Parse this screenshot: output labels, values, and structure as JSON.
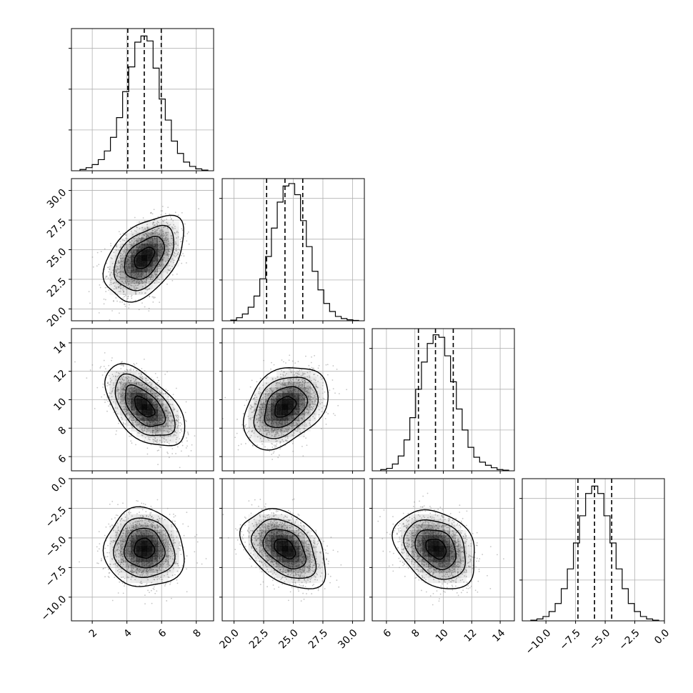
{
  "chart_data": {
    "type": "corner",
    "grid": true,
    "parameters": [
      {
        "index": 0,
        "range": [
          0.8,
          9.0
        ],
        "ticks": [
          2,
          4,
          6,
          8
        ],
        "tick_labels": [
          "2",
          "4",
          "6",
          "8"
        ],
        "quantiles": [
          4.05,
          5.0,
          5.98
        ],
        "hist_bins": [
          0.1,
          0.25,
          0.5,
          0.9,
          1.6,
          2.7,
          4.3,
          6.4,
          8.4,
          10.4,
          10.9,
          10.5,
          8.3,
          5.8,
          4.1,
          2.4,
          1.4,
          0.7,
          0.35,
          0.15,
          0.05
        ],
        "hist_grid_counts": [
          3.3,
          6.6,
          9.9
        ],
        "hist_ylim": [
          0,
          11.5
        ]
      },
      {
        "index": 1,
        "range": [
          19.0,
          31.0
        ],
        "ticks": [
          20.0,
          22.5,
          25.0,
          27.5,
          30.0
        ],
        "tick_labels": [
          "20.0",
          "22.5",
          "25.0",
          "27.5",
          "30.0"
        ],
        "quantiles": [
          22.75,
          24.3,
          25.8
        ],
        "hist_bins": [
          0.05,
          0.25,
          0.55,
          1.1,
          2.0,
          3.4,
          5.2,
          7.5,
          9.6,
          10.9,
          11.1,
          10.2,
          8.1,
          6.0,
          4.0,
          2.5,
          1.4,
          0.75,
          0.35,
          0.18,
          0.08,
          0.03
        ],
        "hist_grid_counts": [
          3.3,
          6.6,
          9.9
        ],
        "hist_ylim": [
          0,
          11.5
        ]
      },
      {
        "index": 2,
        "range": [
          5.0,
          15.0
        ],
        "ticks": [
          6,
          8,
          10,
          12,
          14
        ],
        "tick_labels": [
          "6",
          "8",
          "10",
          "12",
          "14"
        ],
        "quantiles": [
          8.25,
          9.45,
          10.7
        ],
        "hist_bins": [
          0.1,
          0.2,
          0.55,
          1.2,
          2.5,
          4.3,
          6.6,
          8.8,
          10.3,
          11.0,
          10.8,
          9.3,
          7.2,
          5.0,
          3.3,
          1.9,
          1.1,
          0.7,
          0.45,
          0.25,
          0.1,
          0.05
        ],
        "hist_grid_counts": [
          3.3,
          6.6,
          9.9
        ],
        "hist_ylim": [
          0,
          11.5
        ]
      },
      {
        "index": 3,
        "range": [
          -12.0,
          0.0
        ],
        "ticks": [
          -10.0,
          -7.5,
          -5.0,
          -2.5,
          0.0
        ],
        "tick_labels": [
          "−10.0",
          "−7.5",
          "−5.0",
          "−2.5",
          "0.0"
        ],
        "quantiles": [
          -7.3,
          -5.9,
          -4.45
        ],
        "hist_bins": [
          0.05,
          0.15,
          0.35,
          0.75,
          1.4,
          2.6,
          4.2,
          6.3,
          8.5,
          10.3,
          10.9,
          10.3,
          8.5,
          6.3,
          4.2,
          2.6,
          1.4,
          0.75,
          0.35,
          0.15,
          0.05
        ],
        "hist_grid_counts": [
          3.3,
          6.6,
          9.9
        ],
        "hist_ylim": [
          0,
          11.5
        ]
      }
    ],
    "pairs": [
      {
        "x": 0,
        "y": 1,
        "mean": [
          5.0,
          24.3
        ],
        "sd": [
          1.0,
          1.55
        ],
        "corr": 0.45
      },
      {
        "x": 0,
        "y": 2,
        "mean": [
          5.0,
          9.5
        ],
        "sd": [
          1.0,
          1.25
        ],
        "corr": -0.55
      },
      {
        "x": 1,
        "y": 2,
        "mean": [
          24.3,
          9.5
        ],
        "sd": [
          1.55,
          1.25
        ],
        "corr": 0.35
      },
      {
        "x": 0,
        "y": 3,
        "mean": [
          5.0,
          -5.9
        ],
        "sd": [
          1.0,
          1.45
        ],
        "corr": -0.05
      },
      {
        "x": 1,
        "y": 3,
        "mean": [
          24.3,
          -5.9
        ],
        "sd": [
          1.55,
          1.45
        ],
        "corr": -0.4
      },
      {
        "x": 2,
        "y": 3,
        "mean": [
          9.5,
          -5.9
        ],
        "sd": [
          1.25,
          1.45
        ],
        "corr": -0.3
      }
    ],
    "contour_levels_sigma": [
      0.5,
      1.0,
      1.5,
      2.0
    ],
    "colors": {
      "line": "#000000",
      "grid": "#b0b0b0",
      "scatter": "#8c8c8c",
      "density": "#000000"
    }
  }
}
